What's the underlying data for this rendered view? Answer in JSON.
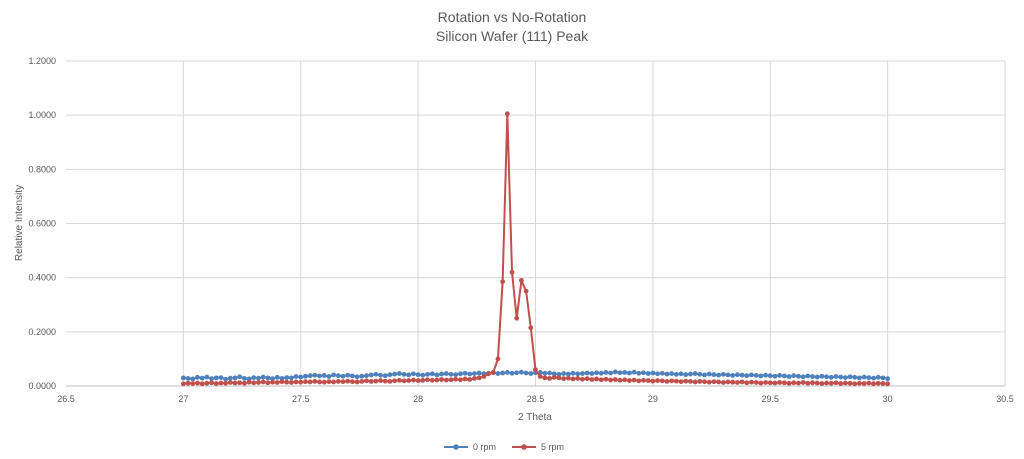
{
  "chart_data": {
    "type": "line",
    "title": "Rotation vs No-Rotation",
    "subtitle": "Silicon Wafer (111) Peak",
    "xlabel": "2 Theta",
    "ylabel": "Relative Intensity",
    "xlim": [
      26.5,
      30.5
    ],
    "ylim": [
      0,
      1.2
    ],
    "x_ticks": [
      "26.5",
      "27",
      "27.5",
      "28",
      "28.5",
      "29",
      "29.5",
      "30",
      "30.5"
    ],
    "x_tick_values": [
      26.5,
      27,
      27.5,
      28,
      28.5,
      29,
      29.5,
      30,
      30.5
    ],
    "y_ticks": [
      "0.0000",
      "0.2000",
      "0.4000",
      "0.6000",
      "0.8000",
      "1.0000",
      "1.2000"
    ],
    "y_tick_values": [
      0,
      0.2,
      0.4,
      0.6,
      0.8,
      1.0,
      1.2
    ],
    "grid": true,
    "legend_position": "bottom",
    "x_range": [
      27.0,
      30.0
    ],
    "x_step": 0.02,
    "series": [
      {
        "name": "0 rpm",
        "color": "#4f81bd",
        "values": [
          0.03,
          0.028,
          0.026,
          0.032,
          0.029,
          0.033,
          0.027,
          0.03,
          0.031,
          0.025,
          0.029,
          0.03,
          0.034,
          0.028,
          0.026,
          0.031,
          0.029,
          0.033,
          0.03,
          0.027,
          0.032,
          0.028,
          0.031,
          0.03,
          0.035,
          0.033,
          0.036,
          0.038,
          0.04,
          0.037,
          0.039,
          0.035,
          0.041,
          0.038,
          0.036,
          0.04,
          0.037,
          0.034,
          0.036,
          0.038,
          0.041,
          0.043,
          0.04,
          0.038,
          0.042,
          0.044,
          0.046,
          0.043,
          0.041,
          0.045,
          0.042,
          0.04,
          0.043,
          0.045,
          0.041,
          0.044,
          0.046,
          0.043,
          0.042,
          0.045,
          0.047,
          0.044,
          0.046,
          0.048,
          0.045,
          0.047,
          0.049,
          0.046,
          0.048,
          0.05,
          0.047,
          0.049,
          0.051,
          0.048,
          0.046,
          0.049,
          0.05,
          0.047,
          0.048,
          0.045,
          0.043,
          0.046,
          0.044,
          0.047,
          0.045,
          0.046,
          0.048,
          0.046,
          0.049,
          0.047,
          0.05,
          0.048,
          0.052,
          0.049,
          0.05,
          0.048,
          0.051,
          0.047,
          0.049,
          0.046,
          0.048,
          0.045,
          0.047,
          0.044,
          0.046,
          0.043,
          0.045,
          0.042,
          0.044,
          0.046,
          0.043,
          0.041,
          0.044,
          0.042,
          0.04,
          0.043,
          0.041,
          0.039,
          0.042,
          0.04,
          0.038,
          0.041,
          0.039,
          0.037,
          0.04,
          0.038,
          0.036,
          0.039,
          0.037,
          0.035,
          0.038,
          0.036,
          0.034,
          0.037,
          0.035,
          0.033,
          0.036,
          0.034,
          0.032,
          0.035,
          0.033,
          0.031,
          0.034,
          0.032,
          0.03,
          0.033,
          0.031,
          0.029,
          0.032,
          0.03,
          0.027
        ]
      },
      {
        "name": "5 rpm",
        "color": "#c0504d",
        "values": [
          0.008,
          0.01,
          0.009,
          0.011,
          0.008,
          0.01,
          0.012,
          0.009,
          0.011,
          0.01,
          0.013,
          0.011,
          0.012,
          0.01,
          0.014,
          0.012,
          0.013,
          0.015,
          0.012,
          0.014,
          0.013,
          0.016,
          0.014,
          0.013,
          0.015,
          0.014,
          0.016,
          0.015,
          0.017,
          0.015,
          0.014,
          0.016,
          0.015,
          0.017,
          0.016,
          0.018,
          0.016,
          0.015,
          0.017,
          0.019,
          0.017,
          0.018,
          0.02,
          0.018,
          0.017,
          0.019,
          0.021,
          0.019,
          0.02,
          0.022,
          0.02,
          0.021,
          0.023,
          0.021,
          0.022,
          0.024,
          0.022,
          0.023,
          0.025,
          0.023,
          0.026,
          0.024,
          0.028,
          0.03,
          0.035,
          0.045,
          0.05,
          0.1,
          0.385,
          1.005,
          0.42,
          0.25,
          0.39,
          0.35,
          0.215,
          0.06,
          0.035,
          0.03,
          0.028,
          0.032,
          0.03,
          0.027,
          0.029,
          0.026,
          0.028,
          0.025,
          0.027,
          0.024,
          0.026,
          0.023,
          0.025,
          0.022,
          0.024,
          0.021,
          0.023,
          0.02,
          0.022,
          0.019,
          0.021,
          0.02,
          0.018,
          0.02,
          0.019,
          0.017,
          0.019,
          0.018,
          0.016,
          0.018,
          0.017,
          0.015,
          0.017,
          0.016,
          0.014,
          0.016,
          0.015,
          0.013,
          0.015,
          0.014,
          0.013,
          0.015,
          0.012,
          0.014,
          0.013,
          0.011,
          0.013,
          0.012,
          0.011,
          0.013,
          0.012,
          0.01,
          0.012,
          0.011,
          0.013,
          0.01,
          0.012,
          0.011,
          0.009,
          0.011,
          0.01,
          0.012,
          0.009,
          0.011,
          0.01,
          0.008,
          0.01,
          0.009,
          0.011,
          0.008,
          0.01,
          0.009,
          0.008
        ]
      }
    ]
  }
}
